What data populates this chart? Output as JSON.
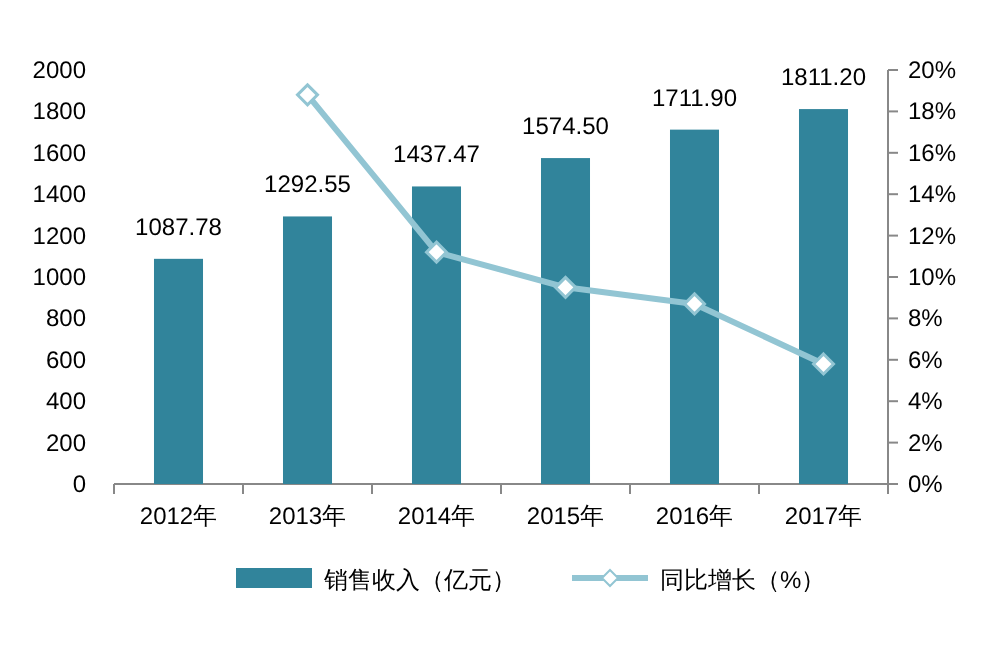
{
  "chart_data": {
    "type": "bar",
    "categories": [
      "2012年",
      "2013年",
      "2014年",
      "2015年",
      "2016年",
      "2017年"
    ],
    "series": [
      {
        "name": "销售收入（亿元）",
        "color": "#31849b",
        "values": [
          1087.78,
          1292.55,
          1437.47,
          1574.5,
          1711.9,
          1811.2
        ],
        "value_labels": [
          "1087.78",
          "1292.55",
          "1437.47",
          "1574.50",
          "1711.90",
          "1811.20"
        ]
      },
      {
        "name": "同比增长（%）",
        "type": "line",
        "axis": "y2",
        "color": "#92c5d3",
        "marker": "diamond",
        "values": [
          null,
          18.8,
          11.2,
          9.5,
          8.7,
          5.8
        ]
      }
    ],
    "ylim": [
      0,
      2000
    ],
    "yticks": [
      0,
      200,
      400,
      600,
      800,
      1000,
      1200,
      1400,
      1600,
      1800,
      2000
    ],
    "y2lim": [
      0,
      20
    ],
    "y2ticks": [
      {
        "value": 0,
        "label": "0%"
      },
      {
        "value": 2,
        "label": "2%"
      },
      {
        "value": 4,
        "label": "4%"
      },
      {
        "value": 6,
        "label": "6%"
      },
      {
        "value": 8,
        "label": "8%"
      },
      {
        "value": 10,
        "label": "10%"
      },
      {
        "value": 12,
        "label": "12%"
      },
      {
        "value": 14,
        "label": "14%"
      },
      {
        "value": 16,
        "label": "16%"
      },
      {
        "value": 18,
        "label": "18%"
      },
      {
        "value": 20,
        "label": "20%"
      }
    ],
    "legend": "bottom",
    "grid": false
  }
}
